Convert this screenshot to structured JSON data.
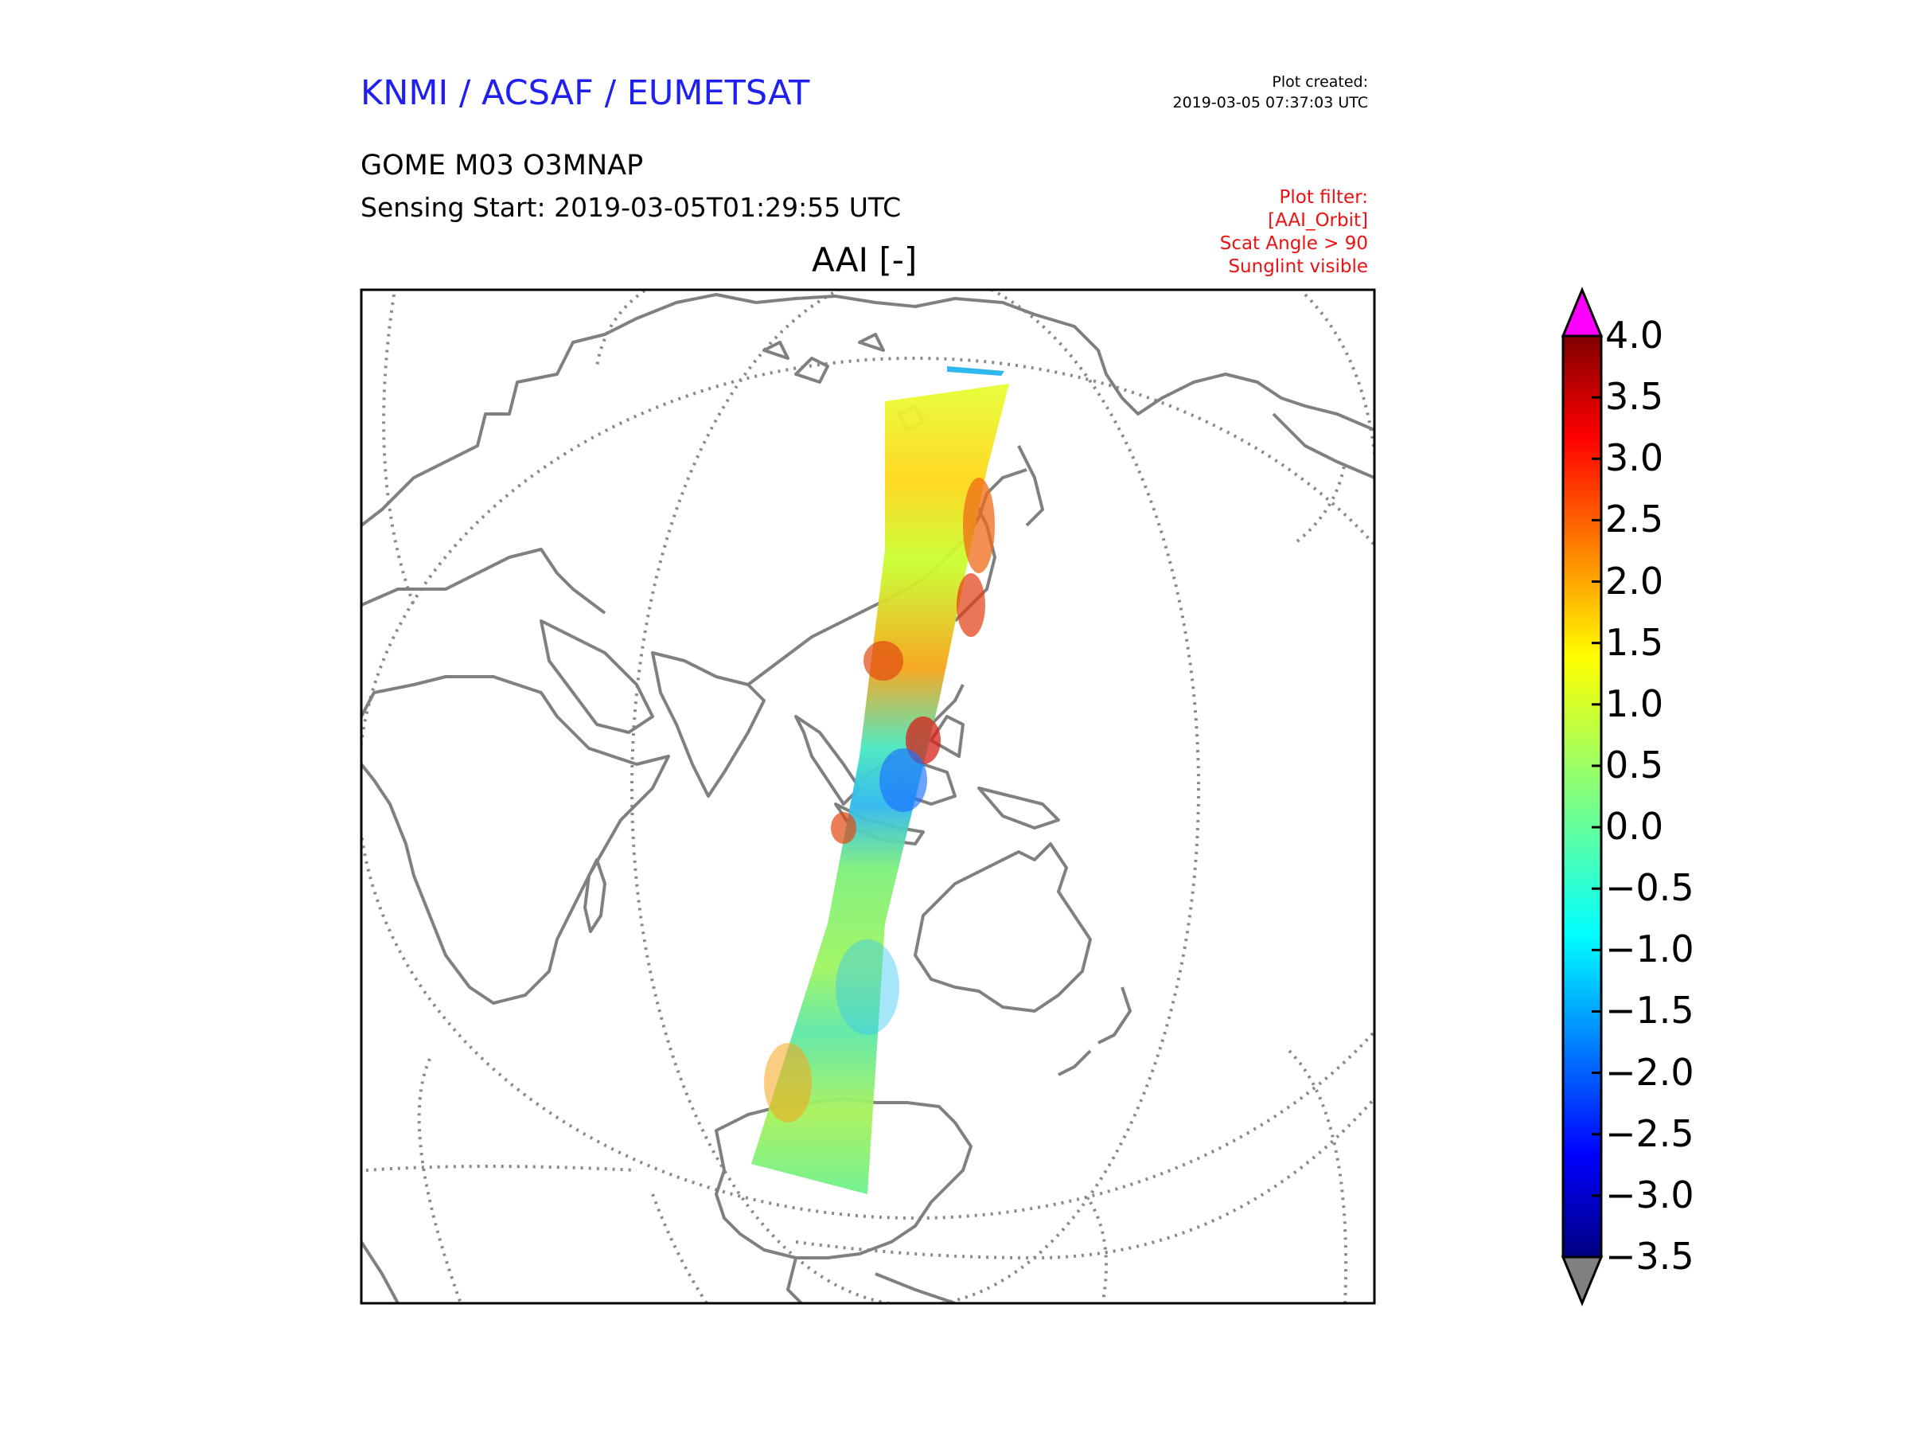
{
  "header": {
    "org": "KNMI / ACSAF / EUMETSAT",
    "product": "GOME M03 O3MNAP",
    "sensing_start": "Sensing Start: 2019-03-05T01:29:55 UTC",
    "plot_created_label": "Plot created:",
    "plot_created_time": "2019-03-05 07:37:03 UTC"
  },
  "filter": {
    "label": "Plot filter:",
    "lines": [
      "[AAI_Orbit]",
      "Scat Angle > 90",
      "Sunglint visible"
    ]
  },
  "map": {
    "title": "AAI [-]",
    "variable": "AAI",
    "projection": "orthographic",
    "region": "Eastern hemisphere: Asia, Africa, Australia, Antarctica"
  },
  "colorbar": {
    "min": -3.5,
    "max": 4.0,
    "ticks": [
      "4.0",
      "3.5",
      "3.0",
      "2.5",
      "2.0",
      "1.5",
      "1.0",
      "0.5",
      "0.0",
      "−0.5",
      "−1.0",
      "−1.5",
      "−2.0",
      "−2.5",
      "−3.0",
      "−3.5"
    ],
    "tick_values": [
      4.0,
      3.5,
      3.0,
      2.5,
      2.0,
      1.5,
      1.0,
      0.5,
      0.0,
      -0.5,
      -1.0,
      -1.5,
      -2.0,
      -2.5,
      -3.0,
      -3.5
    ],
    "over_color": "#ff00ff",
    "under_color": "#808080",
    "colormap": "jet"
  },
  "colors": {
    "org_title": "#1f1fef",
    "filter_text": "#ee1111",
    "coastline": "#808080"
  }
}
